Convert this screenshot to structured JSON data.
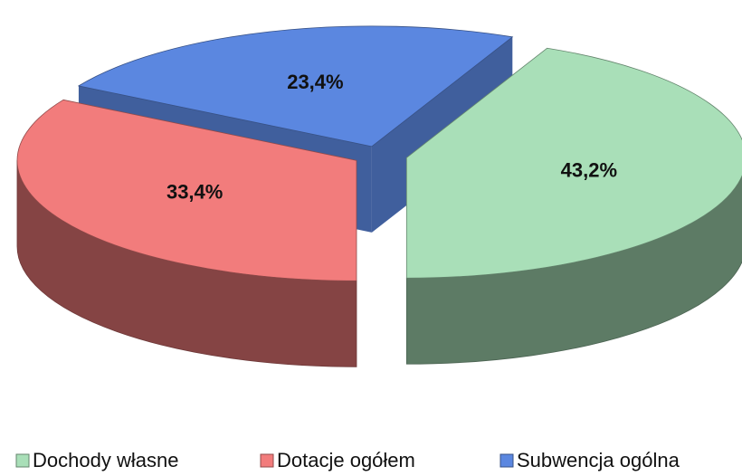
{
  "chart_data": {
    "type": "pie",
    "categories": [
      "Dochody własne",
      "Dotacje ogółem",
      "Subwencja ogólna"
    ],
    "values": [
      43.2,
      33.4,
      23.4
    ],
    "value_labels": [
      "43,2%",
      "33,4%",
      "23,4%"
    ],
    "colors": [
      "#a9dfb8",
      "#f27c7c",
      "#5b87e0"
    ],
    "legend": "bottom"
  }
}
